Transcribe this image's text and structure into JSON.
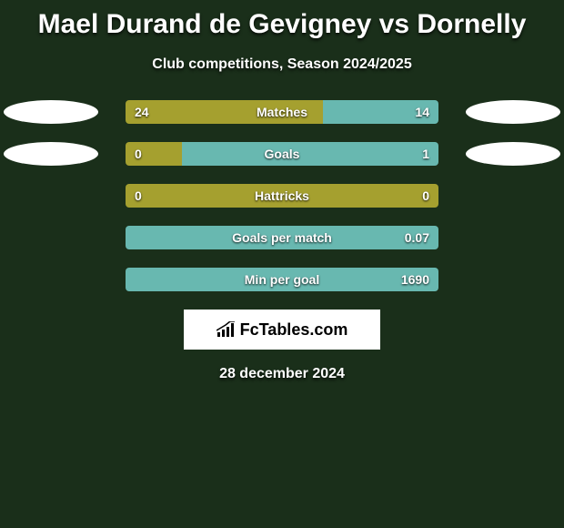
{
  "title": "Mael Durand de Gevigney vs Dornelly",
  "subtitle": "Club competitions, Season 2024/2025",
  "colors": {
    "left_bar": "#a5a02f",
    "right_bar": "#68b8b0",
    "background": "#1a2f1a",
    "avatar": "#ffffff"
  },
  "stats": [
    {
      "label": "Matches",
      "left_val": "24",
      "right_val": "14",
      "left_pct": 63.16,
      "right_pct": 36.84,
      "show_avatars": true
    },
    {
      "label": "Goals",
      "left_val": "0",
      "right_val": "1",
      "left_pct": 18,
      "right_pct": 82,
      "show_avatars": true
    },
    {
      "label": "Hattricks",
      "left_val": "0",
      "right_val": "0",
      "left_pct": 100,
      "right_pct": 0,
      "show_avatars": false
    },
    {
      "label": "Goals per match",
      "left_val": "",
      "right_val": "0.07",
      "left_pct": 0,
      "right_pct": 100,
      "show_avatars": false
    },
    {
      "label": "Min per goal",
      "left_val": "",
      "right_val": "1690",
      "left_pct": 0,
      "right_pct": 100,
      "show_avatars": false
    }
  ],
  "logo_text": "FcTables.com",
  "date": "28 december 2024"
}
